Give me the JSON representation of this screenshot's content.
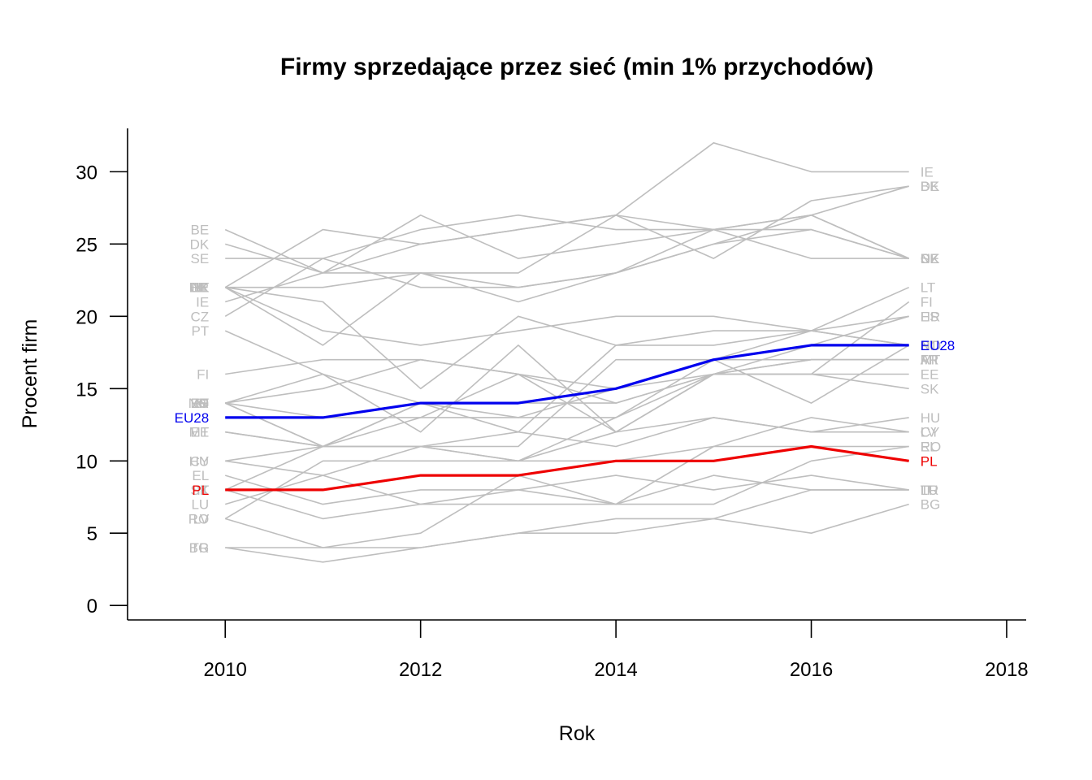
{
  "chart_data": {
    "type": "line",
    "title": "Firmy sprzedające przez sieć (min 1% przychodów)",
    "xlabel": "Rok",
    "ylabel": "Procent firm",
    "xlim": [
      2009,
      2018.2
    ],
    "ylim": [
      -1,
      33
    ],
    "xticks": [
      2010,
      2012,
      2014,
      2016,
      2018
    ],
    "yticks": [
      0,
      5,
      10,
      15,
      20,
      25,
      30
    ],
    "x": [
      2010,
      2011,
      2012,
      2013,
      2014,
      2015,
      2016,
      2017
    ],
    "background_color": "#bebebe",
    "highlight_colors": {
      "EU28": "#0000ee",
      "PL": "#ee0000"
    },
    "series": [
      {
        "name": "BE",
        "values": [
          26,
          23,
          25,
          26,
          27,
          24,
          28,
          29
        ]
      },
      {
        "name": "DK",
        "values": [
          25,
          23,
          27,
          24,
          25,
          26,
          27,
          29
        ]
      },
      {
        "name": "SE",
        "values": [
          24,
          24,
          26,
          27,
          26,
          26,
          24,
          24
        ]
      },
      {
        "name": "NL",
        "values": [
          22,
          26,
          25,
          26,
          27,
          26,
          26,
          24
        ]
      },
      {
        "name": "DE",
        "values": [
          22,
          22,
          23,
          21,
          23,
          25,
          27,
          24
        ]
      },
      {
        "name": "UK",
        "values": [
          22,
          18,
          23,
          22,
          23,
          25,
          26,
          24
        ]
      },
      {
        "name": "IE",
        "values": [
          21,
          23,
          23,
          23,
          27,
          32,
          30,
          30
        ]
      },
      {
        "name": "CZ",
        "values": [
          20,
          24,
          22,
          22,
          23,
          26,
          27,
          24
        ]
      },
      {
        "name": "PT",
        "values": [
          19,
          16,
          14,
          12,
          18,
          19,
          19,
          18
        ]
      },
      {
        "name": "LT",
        "values": [
          22,
          21,
          15,
          20,
          18,
          18,
          19,
          22
        ]
      },
      {
        "name": "FI",
        "values": [
          16,
          17,
          17,
          16,
          14,
          16,
          16,
          21
        ]
      },
      {
        "name": "HR",
        "values": [
          22,
          19,
          18,
          19,
          20,
          20,
          19,
          20
        ]
      },
      {
        "name": "ES",
        "values": [
          14,
          15,
          17,
          16,
          15,
          16,
          18,
          20
        ]
      },
      {
        "name": "AT",
        "values": [
          14,
          13,
          13,
          16,
          12,
          16,
          17,
          17
        ]
      },
      {
        "name": "FR",
        "values": [
          14,
          16,
          12,
          18,
          12,
          16,
          17,
          17
        ]
      },
      {
        "name": "SI",
        "values": [
          14,
          11,
          11,
          10,
          13,
          17,
          19,
          18
        ]
      },
      {
        "name": "NO",
        "values": [
          14,
          11,
          14,
          13,
          15,
          17,
          14,
          18
        ]
      },
      {
        "name": "MT",
        "values": [
          12,
          11,
          11,
          11,
          17,
          17,
          17,
          17
        ]
      },
      {
        "name": "EE",
        "values": [
          12,
          11,
          14,
          14,
          14,
          16,
          16,
          16
        ]
      },
      {
        "name": "SK",
        "values": [
          8,
          11,
          13,
          13,
          13,
          16,
          16,
          15
        ]
      },
      {
        "name": "HU",
        "values": [
          10,
          11,
          11,
          10,
          12,
          13,
          12,
          13
        ]
      },
      {
        "name": "CY",
        "values": [
          10,
          9,
          11,
          12,
          11,
          13,
          12,
          12
        ]
      },
      {
        "name": "LV",
        "values": [
          6,
          10,
          10,
          10,
          10,
          11,
          13,
          12
        ]
      },
      {
        "name": "EL",
        "values": [
          9,
          7,
          8,
          8,
          7,
          11,
          11,
          11
        ]
      },
      {
        "name": "IT",
        "values": [
          8,
          6,
          7,
          8,
          9,
          8,
          9,
          8
        ]
      },
      {
        "name": "RO",
        "values": [
          6,
          4,
          5,
          9,
          7,
          7,
          10,
          11
        ]
      },
      {
        "name": "LU",
        "values": [
          7,
          9,
          7,
          7,
          7,
          9,
          8,
          8
        ]
      },
      {
        "name": "BG",
        "values": [
          4,
          4,
          4,
          5,
          5,
          6,
          5,
          7
        ]
      },
      {
        "name": "TR",
        "values": [
          4,
          3,
          4,
          5,
          6,
          6,
          8,
          8
        ]
      },
      {
        "name": "EU28",
        "values": [
          13,
          13,
          14,
          14,
          15,
          17,
          18,
          18
        ]
      },
      {
        "name": "PL",
        "values": [
          8,
          8,
          9,
          9,
          10,
          10,
          11,
          10
        ]
      }
    ],
    "grid": false,
    "legend": "direct-labels"
  }
}
